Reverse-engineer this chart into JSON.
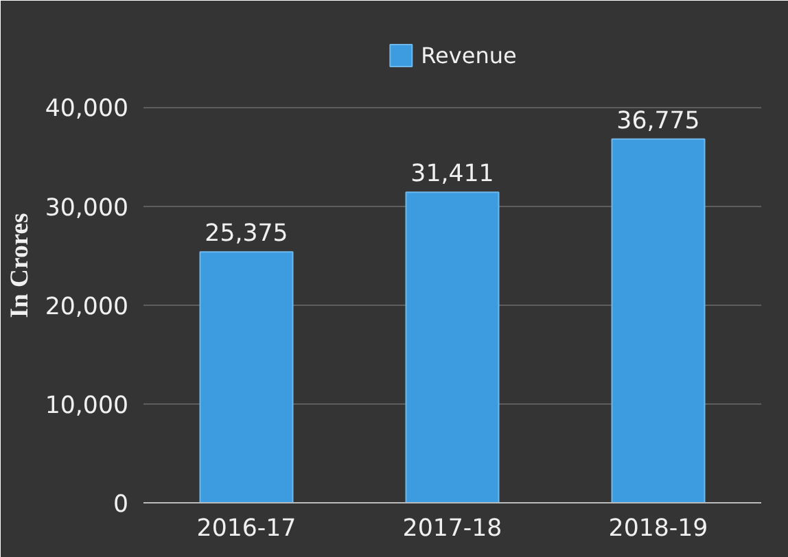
{
  "chart_data": {
    "type": "bar",
    "categories": [
      "2016-17",
      "2017-18",
      "2018-19"
    ],
    "series": [
      {
        "name": "Revenue",
        "color": "#3d9be0",
        "values": [
          25375,
          31411,
          36775
        ],
        "value_labels": [
          "25,375",
          "31,411",
          "36,775"
        ]
      }
    ],
    "ylabel": "In Crores",
    "ylim": [
      0,
      48000
    ],
    "yticks": [
      0,
      {
        "value": 10000,
        "label": "10,000"
      },
      {
        "value": 20000,
        "label": "20,000"
      },
      {
        "value": 30000,
        "label": "30,000"
      },
      {
        "value": 40000,
        "label": "40,000"
      }
    ],
    "grid": "y",
    "legend": "top"
  }
}
